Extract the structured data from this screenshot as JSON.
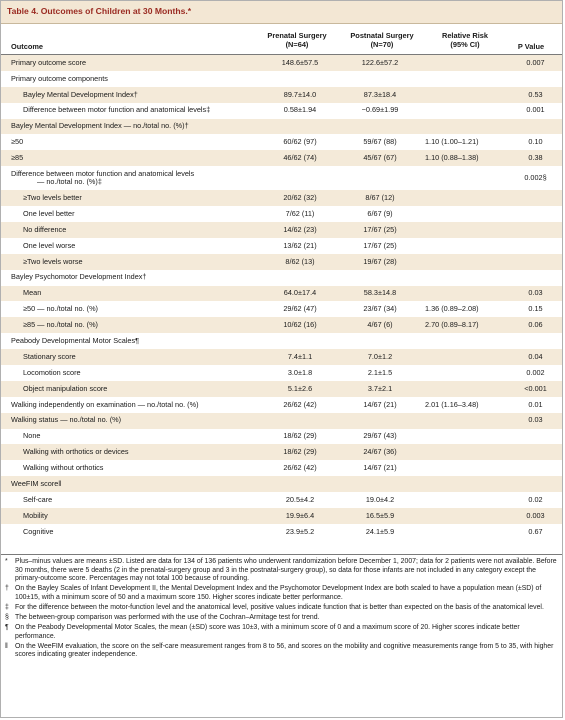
{
  "table": {
    "title": "Table 4. Outcomes of Children at 30 Months.*",
    "headers": {
      "outcome": "Outcome",
      "prenatal": [
        "Prenatal Surgery",
        "(N=64)"
      ],
      "postnatal": [
        "Postnatal Surgery",
        "(N=70)"
      ],
      "rr": [
        "Relative Risk",
        "(95% CI)"
      ],
      "p": "P Value"
    },
    "rows": [
      {
        "label": "Primary outcome score",
        "pre": "148.6±57.5",
        "post": "122.6±57.2",
        "rr": "",
        "p": "0.007",
        "indent": false,
        "shade": true
      },
      {
        "label": "Primary outcome components",
        "pre": "",
        "post": "",
        "rr": "",
        "p": "",
        "indent": false,
        "shade": false
      },
      {
        "label": "Bayley Mental Development Index†",
        "pre": "89.7±14.0",
        "post": "87.3±18.4",
        "rr": "",
        "p": "0.53",
        "indent": true,
        "shade": true
      },
      {
        "label": "Difference between motor function and anatomical levels‡",
        "pre": "0.58±1.94",
        "post": "−0.69±1.99",
        "rr": "",
        "p": "0.001",
        "indent": true,
        "shade": false
      },
      {
        "label": "Bayley Mental Development Index — no./total no. (%)†",
        "pre": "",
        "post": "",
        "rr": "",
        "p": "",
        "indent": false,
        "shade": true
      },
      {
        "label": "≥50",
        "pre": "60/62 (97)",
        "post": "59/67 (88)",
        "rr": "1.10 (1.00–1.21)",
        "p": "0.10",
        "indent": false,
        "shade": false
      },
      {
        "label": "≥85",
        "pre": "46/62 (74)",
        "post": "45/67 (67)",
        "rr": "1.10 (0.88–1.38)",
        "p": "0.38",
        "indent": false,
        "shade": true
      },
      {
        "label": "Difference between motor function and anatomical levels",
        "label2": "— no./total no. (%)‡",
        "pre": "",
        "post": "",
        "rr": "",
        "p": "0.002§",
        "indent": false,
        "shade": false,
        "tall": true
      },
      {
        "label": "≥Two levels better",
        "pre": "20/62 (32)",
        "post": "8/67 (12)",
        "rr": "",
        "p": "",
        "indent": true,
        "shade": true
      },
      {
        "label": "One level better",
        "pre": "7/62 (11)",
        "post": "6/67 (9)",
        "rr": "",
        "p": "",
        "indent": true,
        "shade": false
      },
      {
        "label": "No difference",
        "pre": "14/62 (23)",
        "post": "17/67 (25)",
        "rr": "",
        "p": "",
        "indent": true,
        "shade": true
      },
      {
        "label": "One level worse",
        "pre": "13/62 (21)",
        "post": "17/67 (25)",
        "rr": "",
        "p": "",
        "indent": true,
        "shade": false
      },
      {
        "label": "≥Two levels worse",
        "pre": "8/62 (13)",
        "post": "19/67 (28)",
        "rr": "",
        "p": "",
        "indent": true,
        "shade": true
      },
      {
        "label": "Bayley Psychomotor Development Index†",
        "pre": "",
        "post": "",
        "rr": "",
        "p": "",
        "indent": false,
        "shade": false
      },
      {
        "label": "Mean",
        "pre": "64.0±17.4",
        "post": "58.3±14.8",
        "rr": "",
        "p": "0.03",
        "indent": true,
        "shade": true
      },
      {
        "label": "≥50 — no./total no. (%)",
        "pre": "29/62 (47)",
        "post": "23/67 (34)",
        "rr": "1.36 (0.89–2.08)",
        "p": "0.15",
        "indent": true,
        "shade": false
      },
      {
        "label": "≥85 — no./total no. (%)",
        "pre": "10/62 (16)",
        "post": "4/67 (6)",
        "rr": "2.70 (0.89–8.17)",
        "p": "0.06",
        "indent": true,
        "shade": true
      },
      {
        "label": "Peabody Developmental Motor Scales¶",
        "pre": "",
        "post": "",
        "rr": "",
        "p": "",
        "indent": false,
        "shade": false
      },
      {
        "label": "Stationary score",
        "pre": "7.4±1.1",
        "post": "7.0±1.2",
        "rr": "",
        "p": "0.04",
        "indent": true,
        "shade": true
      },
      {
        "label": "Locomotion score",
        "pre": "3.0±1.8",
        "post": "2.1±1.5",
        "rr": "",
        "p": "0.002",
        "indent": true,
        "shade": false
      },
      {
        "label": "Object manipulation score",
        "pre": "5.1±2.6",
        "post": "3.7±2.1",
        "rr": "",
        "p": "<0.001",
        "indent": true,
        "shade": true
      },
      {
        "label": "Walking independently on examination — no./total no. (%)",
        "pre": "26/62 (42)",
        "post": "14/67 (21)",
        "rr": "2.01 (1.16–3.48)",
        "p": "0.01",
        "indent": false,
        "shade": false
      },
      {
        "label": "Walking status — no./total no. (%)",
        "pre": "",
        "post": "",
        "rr": "",
        "p": "0.03",
        "indent": false,
        "shade": true
      },
      {
        "label": "None",
        "pre": "18/62 (29)",
        "post": "29/67 (43)",
        "rr": "",
        "p": "",
        "indent": true,
        "shade": false
      },
      {
        "label": "Walking with orthotics or devices",
        "pre": "18/62 (29)",
        "post": "24/67 (36)",
        "rr": "",
        "p": "",
        "indent": true,
        "shade": true
      },
      {
        "label": "Walking without orthotics",
        "pre": "26/62 (42)",
        "post": "14/67 (21)",
        "rr": "",
        "p": "",
        "indent": true,
        "shade": false
      },
      {
        "label": "WeeFIM score‖",
        "pre": "",
        "post": "",
        "rr": "",
        "p": "",
        "indent": false,
        "shade": true
      },
      {
        "label": "Self-care",
        "pre": "20.5±4.2",
        "post": "19.0±4.2",
        "rr": "",
        "p": "0.02",
        "indent": true,
        "shade": false
      },
      {
        "label": "Mobility",
        "pre": "19.9±6.4",
        "post": "16.5±5.9",
        "rr": "",
        "p": "0.003",
        "indent": true,
        "shade": true
      },
      {
        "label": "Cognitive",
        "pre": "23.9±5.2",
        "post": "24.1±5.9",
        "rr": "",
        "p": "0.67",
        "indent": true,
        "shade": false
      }
    ],
    "footnotes": [
      {
        "sym": "*",
        "text": "Plus–minus values are means ±SD. Listed are data for 134 of 136 patients who underwent randomization before December 1, 2007; data for 2 patients were not available. Before 30 months, there were 5 deaths (2 in the prenatal-surgery group and 3 in the postnatal-surgery group), so data for those infants are not included in any category except the primary-outcome score. Percentages may not total 100 because of rounding."
      },
      {
        "sym": "†",
        "text": "On the Bayley Scales of Infant Development II, the Mental Development Index and the Psychomotor Development Index are both scaled to have a population mean (±SD) of 100±15, with a minimum score of 50 and a maximum score 150. Higher scores indicate better performance."
      },
      {
        "sym": "‡",
        "text": "For the difference between the motor-function level and the anatomical level, positive values indicate function that is better than expected on the basis of the anatomical level."
      },
      {
        "sym": "§",
        "text": "The between-group comparison was performed with the use of the Cochran–Armitage test for trend."
      },
      {
        "sym": "¶",
        "text": "On the Peabody Developmental Motor Scales, the mean (±SD) score was 10±3, with a minimum score of 0 and a maximum score of 20. Higher scores indicate better performance."
      },
      {
        "sym": "‖",
        "text": "On the WeeFIM evaluation, the score on the self-care measurement ranges from 8 to 56, and scores on the mobility and cognitive measurements range from 5 to 35, with higher scores indicating greater independence."
      }
    ]
  }
}
